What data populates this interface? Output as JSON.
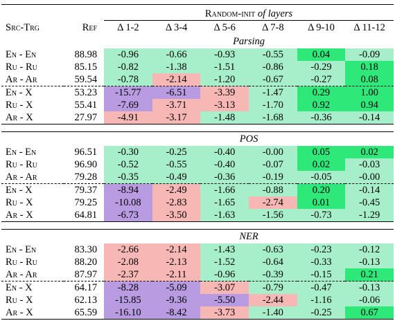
{
  "header": {
    "group_title_sc": "Random-init",
    "group_title_it": "of layers",
    "src_trg": "Src-Trg",
    "ref": "Ref",
    "cols": [
      "Δ 1-2",
      "Δ 3-4",
      "Δ 5-6",
      "Δ 7-8",
      "Δ 9-10",
      "Δ 11-12"
    ]
  },
  "sections": [
    {
      "title": "Parsing",
      "rows": [
        {
          "pair": "En - En",
          "ref": "88.98",
          "vals": [
            "-0.96",
            "-0.66",
            "-0.93",
            "-0.55",
            "0.04",
            "-0.09"
          ],
          "colors": [
            "light",
            "light",
            "light",
            "light",
            "strong",
            "light"
          ]
        },
        {
          "pair": "Ru - Ru",
          "ref": "85.15",
          "vals": [
            "-0.82",
            "-1.38",
            "-1.51",
            "-0.86",
            "-0.29",
            "0.18"
          ],
          "colors": [
            "light",
            "light",
            "light",
            "light",
            "light",
            "strong"
          ]
        },
        {
          "pair": "Ar - Ar",
          "ref": "59.54",
          "vals": [
            "-0.78",
            "-2.14",
            "-1.20",
            "-0.67",
            "-0.27",
            "0.08"
          ],
          "colors": [
            "light",
            "pink",
            "light",
            "light",
            "light",
            "strong"
          ]
        },
        {
          "pair": "En - X",
          "ref": "53.23",
          "vals": [
            "-15.77",
            "-6.51",
            "-3.39",
            "-1.47",
            "0.29",
            "1.00"
          ],
          "colors": [
            "purple",
            "purple",
            "pink",
            "light",
            "strong",
            "strong"
          ]
        },
        {
          "pair": "Ru - X",
          "ref": "55.41",
          "vals": [
            "-7.69",
            "-3.71",
            "-3.13",
            "-1.70",
            "0.92",
            "0.94"
          ],
          "colors": [
            "purple",
            "pink",
            "pink",
            "light",
            "strong",
            "strong"
          ]
        },
        {
          "pair": "Ar - X",
          "ref": "27.97",
          "vals": [
            "-4.91",
            "-3.17",
            "-1.48",
            "-1.68",
            "-0.36",
            "-0.14"
          ],
          "colors": [
            "pink",
            "pink",
            "light",
            "light",
            "light",
            "light"
          ]
        }
      ]
    },
    {
      "title": "POS",
      "rows": [
        {
          "pair": "En - En",
          "ref": "96.51",
          "vals": [
            "-0.30",
            "-0.25",
            "-0.40",
            "-0.00",
            "0.05",
            "0.02"
          ],
          "colors": [
            "light",
            "light",
            "light",
            "light",
            "strong",
            "strong"
          ]
        },
        {
          "pair": "Ru - Ru",
          "ref": "96.90",
          "vals": [
            "-0.52",
            "-0.55",
            "-0.40",
            "-0.07",
            "0.02",
            "-0.03"
          ],
          "colors": [
            "light",
            "light",
            "light",
            "light",
            "strong",
            "light"
          ]
        },
        {
          "pair": "Ar - Ar",
          "ref": "79.28",
          "vals": [
            "-0.35",
            "-0.49",
            "-0.36",
            "-0.19",
            "-0.05",
            "-0.00"
          ],
          "colors": [
            "light",
            "light",
            "light",
            "light",
            "light",
            "light"
          ]
        },
        {
          "pair": "En - X",
          "ref": "79.37",
          "vals": [
            "-8.94",
            "-2.49",
            "-1.66",
            "-0.88",
            "0.20",
            "-0.14"
          ],
          "colors": [
            "purple",
            "pink",
            "light",
            "light",
            "strong",
            "light"
          ]
        },
        {
          "pair": "Ru - X",
          "ref": "79.25",
          "vals": [
            "-10.08",
            "-2.83",
            "-1.65",
            "-2.74",
            "0.01",
            "-0.45"
          ],
          "colors": [
            "purple",
            "pink",
            "light",
            "pink",
            "strong",
            "light"
          ]
        },
        {
          "pair": "Ar - X",
          "ref": "64.81",
          "vals": [
            "-6.73",
            "-3.50",
            "-1.63",
            "-1.56",
            "-0.73",
            "-1.29"
          ],
          "colors": [
            "purple",
            "pink",
            "light",
            "light",
            "light",
            "light"
          ]
        }
      ]
    },
    {
      "title": "NER",
      "rows": [
        {
          "pair": "En - En",
          "ref": "83.30",
          "vals": [
            "-2.66",
            "-2.14",
            "-1.43",
            "-0.63",
            "-0.23",
            "-0.12"
          ],
          "colors": [
            "pink",
            "pink",
            "light",
            "light",
            "light",
            "light"
          ]
        },
        {
          "pair": "Ru - Ru",
          "ref": "88.20",
          "vals": [
            "-2.08",
            "-2.13",
            "-1.52",
            "-0.64",
            "-0.33",
            "-0.13"
          ],
          "colors": [
            "pink",
            "pink",
            "light",
            "light",
            "light",
            "light"
          ]
        },
        {
          "pair": "Ar - Ar",
          "ref": "87.97",
          "vals": [
            "-2.37",
            "-2.11",
            "-0.96",
            "-0.39",
            "-0.15",
            "0.21"
          ],
          "colors": [
            "pink",
            "pink",
            "light",
            "light",
            "light",
            "strong"
          ]
        },
        {
          "pair": "En - X",
          "ref": "64.17",
          "vals": [
            "-8.28",
            "-5.09",
            "-3.07",
            "-0.79",
            "-0.47",
            "-0.13"
          ],
          "colors": [
            "purple",
            "purple",
            "pink",
            "light",
            "light",
            "light"
          ]
        },
        {
          "pair": "Ru - X",
          "ref": "62.13",
          "vals": [
            "-15.85",
            "-9.36",
            "-5.50",
            "-2.44",
            "-1.16",
            "-0.06"
          ],
          "colors": [
            "purple",
            "purple",
            "purple",
            "pink",
            "light",
            "light"
          ]
        },
        {
          "pair": "Ar - X",
          "ref": "65.59",
          "vals": [
            "-16.10",
            "-8.42",
            "-3.73",
            "-1.40",
            "-0.25",
            "0.67"
          ],
          "colors": [
            "purple",
            "purple",
            "pink",
            "light",
            "light",
            "strong"
          ]
        }
      ]
    }
  ]
}
